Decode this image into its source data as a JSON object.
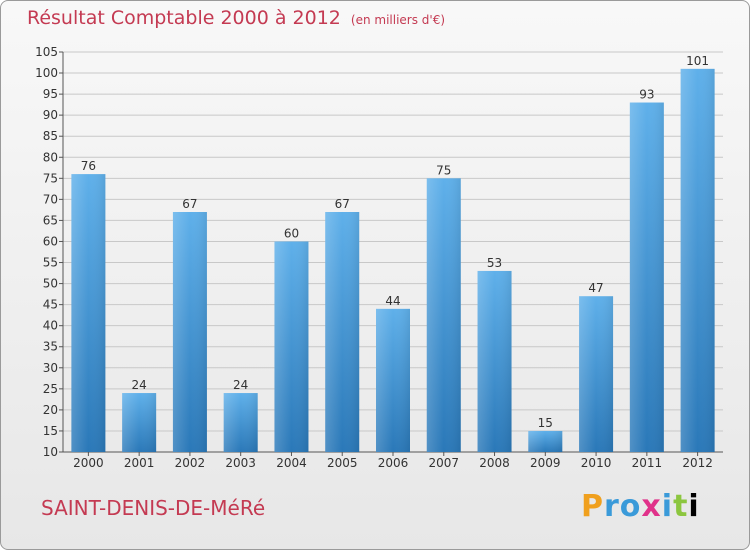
{
  "title": "Résultat Comptable 2000 à 2012",
  "subtitle": "(en milliers d'€)",
  "commune": "SAINT-DENIS-DE-MéRé",
  "logo": [
    "P",
    "r",
    "o",
    "x",
    "i",
    "t",
    "i"
  ],
  "colors": {
    "title": "#c43a52",
    "bar_top": "#5fb0ea",
    "bar_bottom": "#2a78b8",
    "grid": "#c8c8c8"
  },
  "chart_data": {
    "type": "bar",
    "title": "Résultat Comptable 2000 à 2012",
    "subtitle": "(en milliers d'€)",
    "xlabel": "",
    "ylabel": "",
    "categories": [
      "2000",
      "2001",
      "2002",
      "2003",
      "2004",
      "2005",
      "2006",
      "2007",
      "2008",
      "2009",
      "2010",
      "2011",
      "2012"
    ],
    "values": [
      76,
      24,
      67,
      24,
      60,
      67,
      44,
      75,
      53,
      15,
      47,
      93,
      101
    ],
    "ylim": [
      10,
      105
    ],
    "yticks": [
      10,
      15,
      20,
      25,
      30,
      35,
      40,
      45,
      50,
      55,
      60,
      65,
      70,
      75,
      80,
      85,
      90,
      95,
      100,
      105
    ],
    "grid": true,
    "legend": "none"
  }
}
